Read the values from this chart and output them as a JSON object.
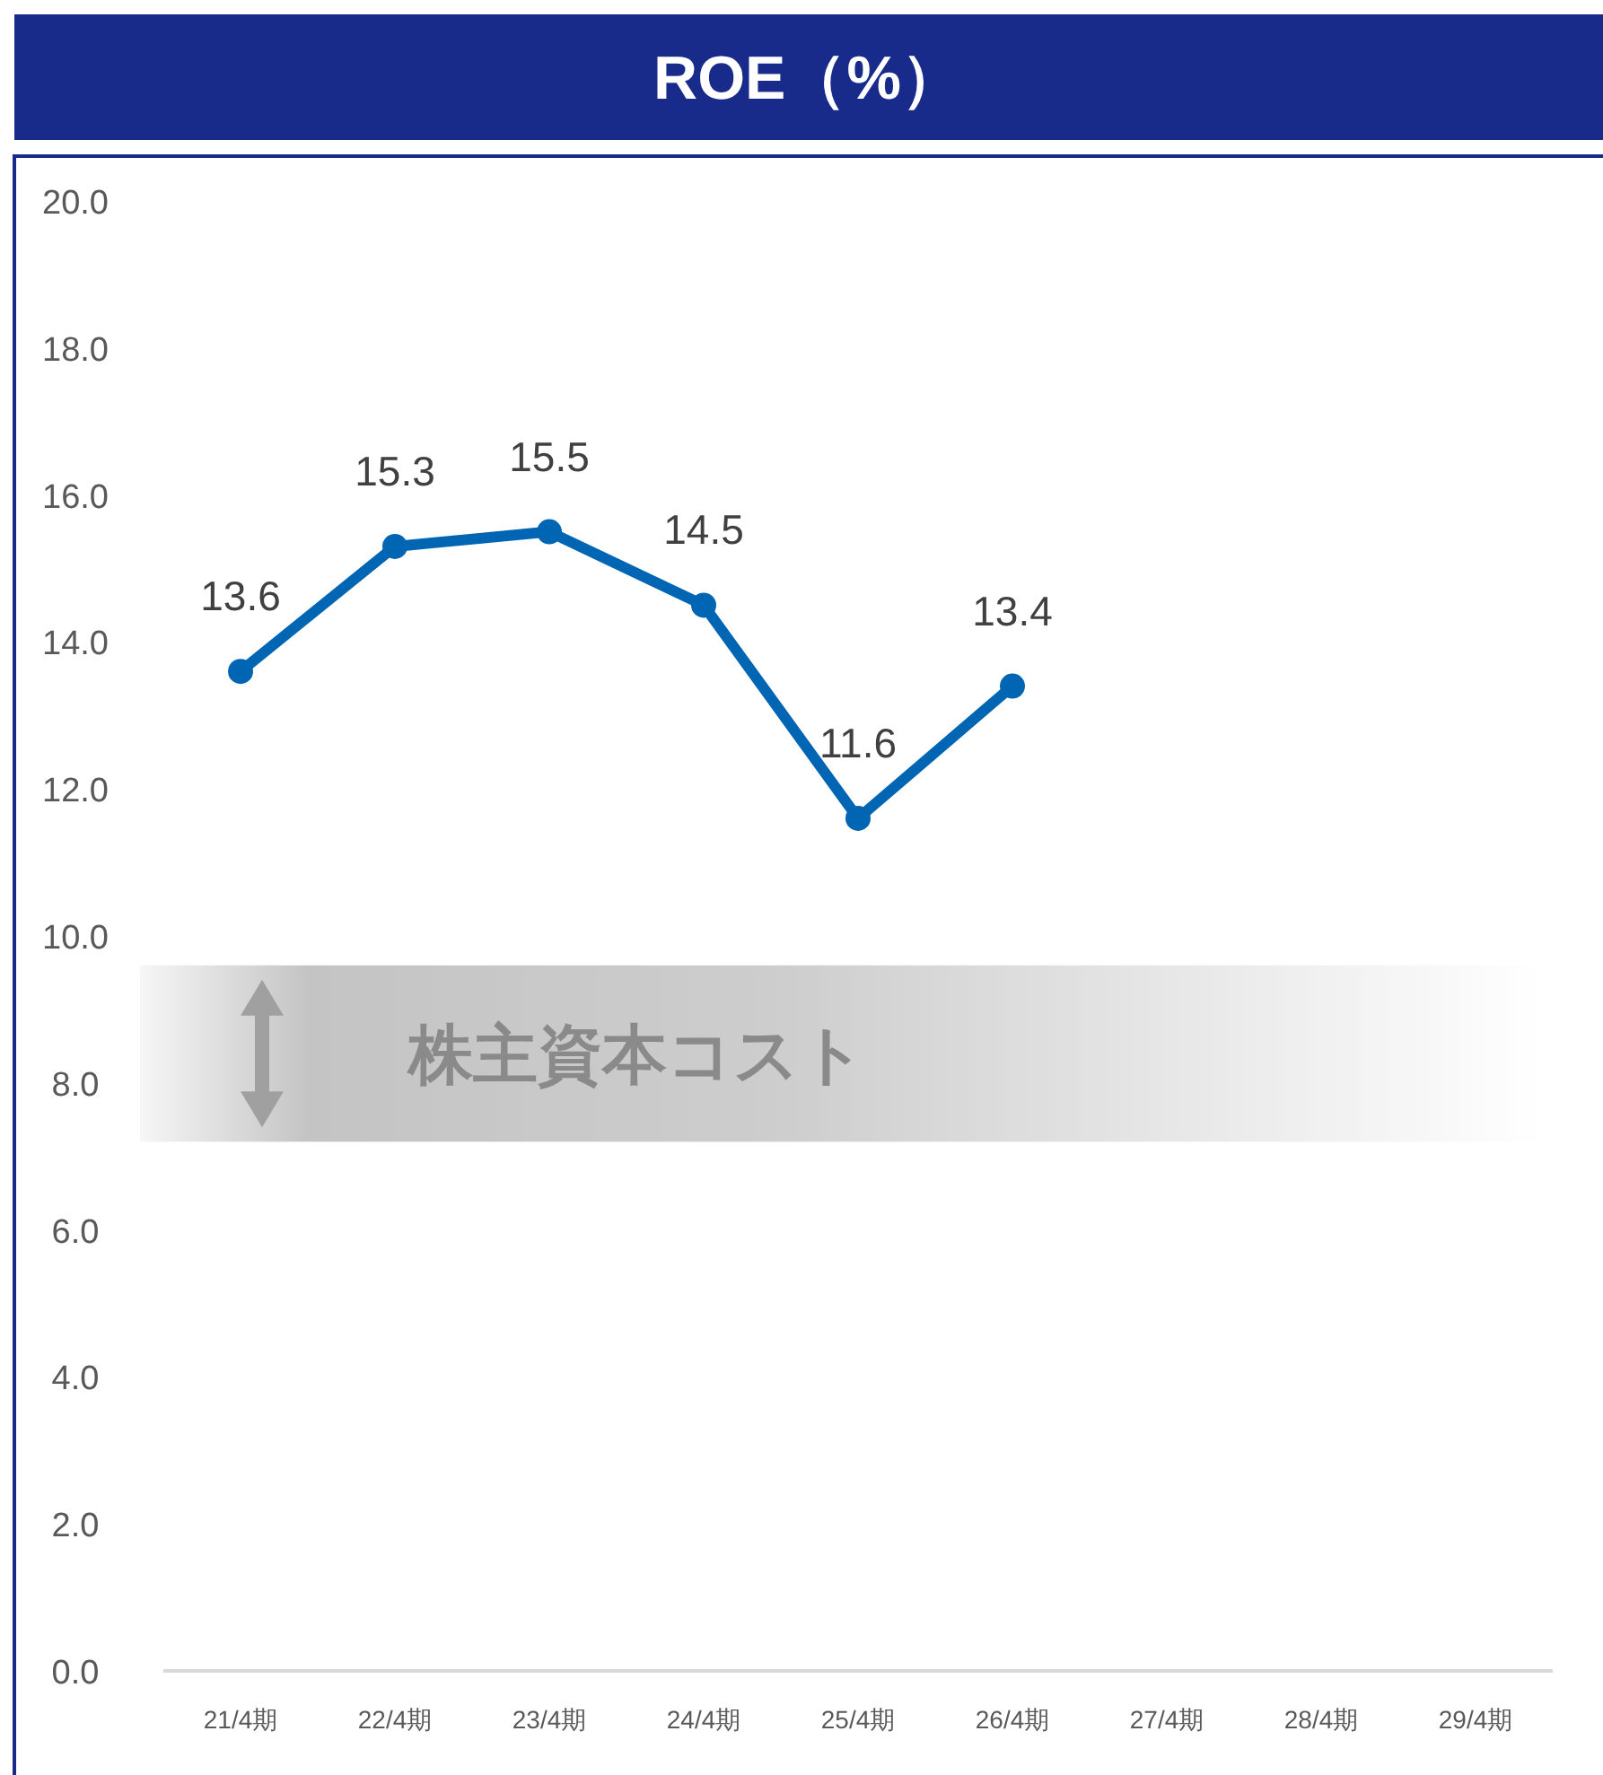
{
  "chart_data": {
    "type": "line",
    "title": "ROE（%）",
    "categories": [
      "21/4期",
      "22/4期",
      "23/4期",
      "24/4期",
      "25/4期",
      "26/4期",
      "27/4期",
      "28/4期",
      "29/4期"
    ],
    "series": [
      {
        "color": "#0066b3",
        "values": [
          13.6,
          15.3,
          15.5,
          14.5,
          11.6,
          13.4,
          null,
          null,
          null
        ]
      }
    ],
    "ylim": [
      0,
      20
    ],
    "yticks": [
      {
        "value": 0,
        "label": "0.0"
      },
      {
        "value": 2,
        "label": "2.0"
      },
      {
        "value": 4,
        "label": "4.0"
      },
      {
        "value": 6,
        "label": "6.0"
      },
      {
        "value": 8,
        "label": "8.0"
      },
      {
        "value": 10,
        "label": "10.0"
      },
      {
        "value": 12,
        "label": "12.0"
      },
      {
        "value": 14,
        "label": "14.0"
      },
      {
        "value": 16,
        "label": "16.0"
      },
      {
        "value": 18,
        "label": "18.0"
      },
      {
        "value": 20,
        "label": "20.0"
      }
    ],
    "bands": [
      {
        "axis": "y",
        "from": 7.2,
        "to": 9.6,
        "label": "株主資本コスト",
        "color": "#c4c4c4"
      }
    ],
    "data_labels": true,
    "marker": "circle",
    "line_style": "solid"
  }
}
